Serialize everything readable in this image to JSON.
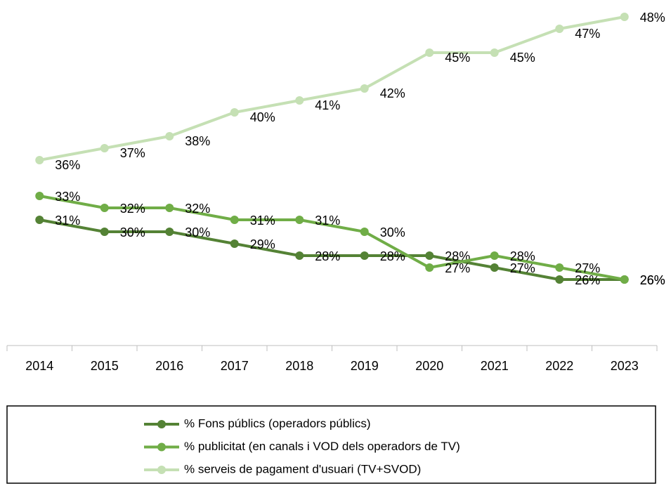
{
  "chart_data": {
    "type": "line",
    "categories": [
      "2014",
      "2015",
      "2016",
      "2017",
      "2018",
      "2019",
      "2020",
      "2021",
      "2022",
      "2023"
    ],
    "series": [
      {
        "name": "% Fons públics (operadors públics)",
        "color": "#548235",
        "values": [
          31,
          30,
          30,
          29,
          28,
          28,
          28,
          27,
          26,
          26
        ],
        "value_labels": [
          "31%",
          "30%",
          "30%",
          "29%",
          "28%",
          "28%",
          "28%",
          "27%",
          "26%",
          "26%"
        ]
      },
      {
        "name": "% publicitat (en canals i VOD dels operadors de TV)",
        "color": "#70ad47",
        "values": [
          33,
          32,
          32,
          31,
          31,
          30,
          27,
          28,
          27,
          26
        ],
        "value_labels": [
          "33%",
          "32%",
          "32%",
          "31%",
          "31%",
          "30%",
          "27%",
          "28%",
          "27%",
          "26%"
        ]
      },
      {
        "name": "% serveis de pagament d'usuari (TV+SVOD)",
        "color": "#c5e0b4",
        "values": [
          36,
          37,
          38,
          40,
          41,
          42,
          45,
          45,
          47,
          48
        ],
        "value_labels": [
          "36%",
          "37%",
          "38%",
          "40%",
          "41%",
          "42%",
          "45%",
          "45%",
          "47%",
          "48%"
        ]
      }
    ],
    "ylim": [
      20,
      50
    ]
  }
}
